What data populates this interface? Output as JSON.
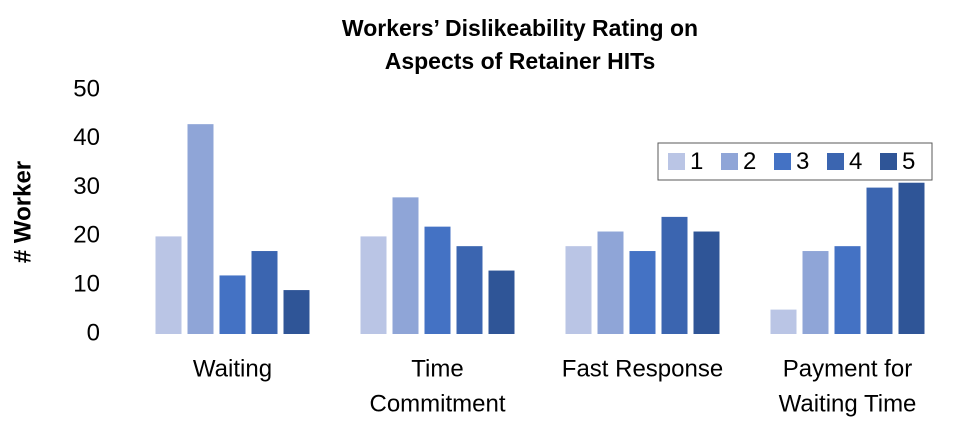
{
  "chart_data": {
    "type": "bar",
    "title": [
      "Workers’ Dislikeability Rating on",
      "Aspects of  Retainer HITs"
    ],
    "y_label": "# Worker",
    "categories": [
      [
        "Waiting"
      ],
      [
        "Time",
        "Commitment"
      ],
      [
        "Fast Response"
      ],
      [
        "Payment for",
        "Waiting Time"
      ]
    ],
    "series": [
      {
        "name": "1",
        "color": "#bac5e5",
        "values": [
          20,
          20,
          18,
          5
        ]
      },
      {
        "name": "2",
        "color": "#8fa5d7",
        "values": [
          43,
          28,
          21,
          17
        ]
      },
      {
        "name": "3",
        "color": "#4472c4",
        "values": [
          12,
          22,
          17,
          18
        ]
      },
      {
        "name": "4",
        "color": "#3b65b0",
        "values": [
          17,
          18,
          24,
          30
        ]
      },
      {
        "name": "5",
        "color": "#2f5597",
        "values": [
          9,
          13,
          21,
          31
        ]
      }
    ],
    "ylim": [
      0,
      50
    ],
    "yticks": [
      0,
      10,
      20,
      30,
      40,
      50
    ],
    "grid": false,
    "legend": "top-right"
  }
}
